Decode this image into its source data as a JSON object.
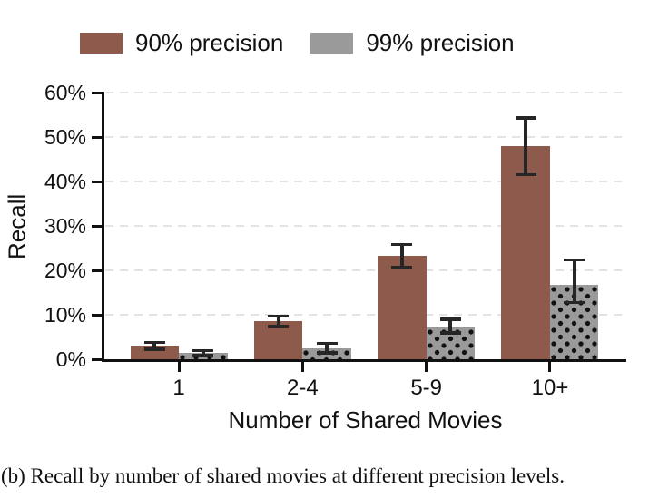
{
  "legend": {
    "items": [
      {
        "label": "90% precision",
        "pattern": "solid",
        "color": "#8d5a4b"
      },
      {
        "label": "99% precision",
        "pattern": "dots",
        "color": "#9a9a9a",
        "dot_color": "#111111"
      }
    ]
  },
  "chart_data": {
    "type": "bar",
    "title": "",
    "xlabel": "Number of Shared Movies",
    "ylabel": "Recall",
    "categories": [
      "1",
      "2-4",
      "5-9",
      "10+"
    ],
    "series": [
      {
        "name": "90% precision",
        "pattern": "solid",
        "color": "#8d5a4b",
        "values": [
          3.1,
          8.5,
          23.3,
          48.0
        ],
        "error_low": [
          2.2,
          7.4,
          20.7,
          41.5
        ],
        "error_high": [
          3.8,
          9.7,
          25.8,
          54.3
        ]
      },
      {
        "name": "99% precision",
        "pattern": "dots",
        "color": "#9a9a9a",
        "values": [
          1.4,
          2.4,
          7.1,
          16.8
        ],
        "error_low": [
          0.8,
          1.4,
          5.9,
          12.8
        ],
        "error_high": [
          1.9,
          3.6,
          9.0,
          22.4
        ]
      }
    ],
    "ylim": [
      0,
      60
    ],
    "y_tick_values": [
      0,
      10,
      20,
      30,
      40,
      50,
      60
    ],
    "y_tick_labels": [
      "0%",
      "10%",
      "20%",
      "30%",
      "40%",
      "50%",
      "60%"
    ],
    "grid": "dashed-horizontal",
    "legend_position": "top",
    "error_bars": true
  },
  "caption": {
    "text": "(b) Recall by number of shared movies at different precision levels."
  },
  "colors": {
    "axis": "#111111",
    "gridline": "#e3e3e3",
    "error_bar": "#262626",
    "background": "#ffffff"
  }
}
